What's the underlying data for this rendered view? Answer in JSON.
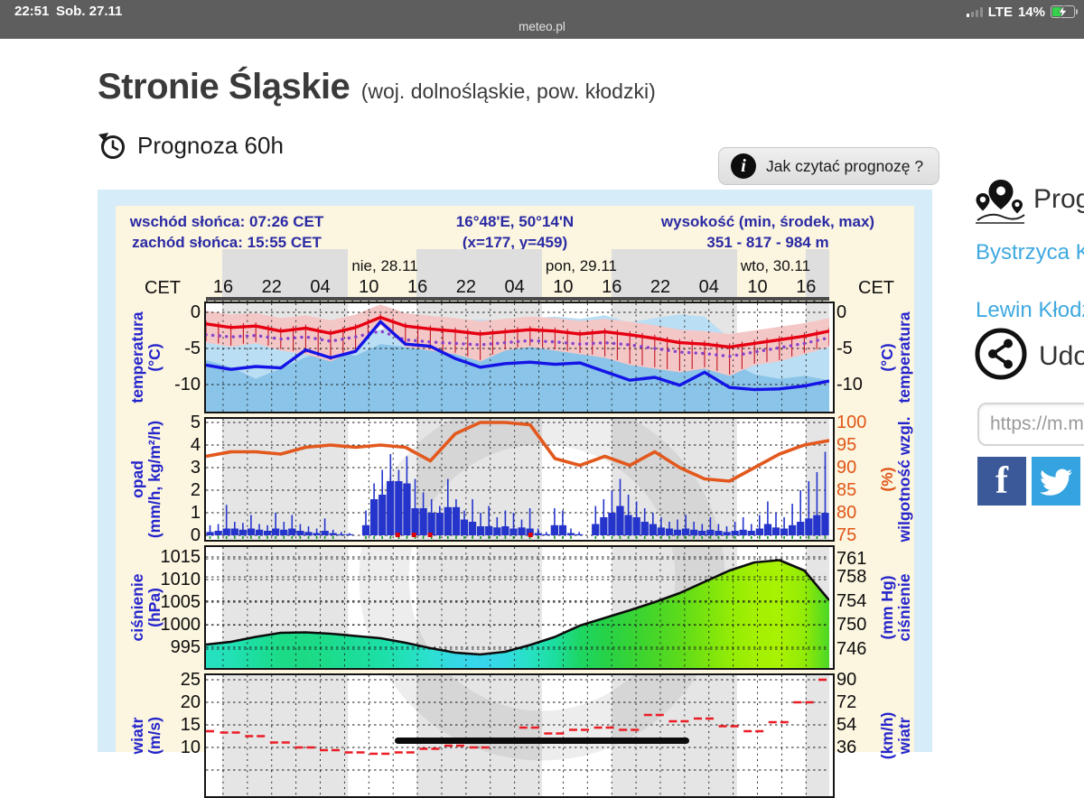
{
  "statusbar": {
    "time": "22:51",
    "date": "Sob. 27.11",
    "site": "meteo.pl",
    "network": "LTE",
    "battery": "14%"
  },
  "page": {
    "title": "Stronie Śląskie",
    "title_suffix": "(woj. dolnośląskie, pow. kłodzki)",
    "forecast_heading": "Prognoza 60h",
    "help_button": "Jak czytać prognozę ?"
  },
  "meteogram_header": {
    "sunrise": "wschód słońca: 07:26 CET",
    "sunset": "zachód słońca: 15:55 CET",
    "coords": "16°48'E, 50°14'N",
    "grid_point": "(x=177, y=459)",
    "altitude_label": "wysokość (min, środek, max)",
    "altitude_values": "351 - 817 - 984 m"
  },
  "sidebar": {
    "nearby_heading": "Prognozy",
    "links": [
      {
        "label": "Bystrzyca Kłodzka"
      },
      {
        "label": "Lewin Kłodzki"
      }
    ],
    "share_heading": "Udostępnij",
    "share_url": "https://m.meteo.pl"
  },
  "colors": {
    "navy": "#2a2aa4",
    "axis_blue": "#2424cc",
    "orange": "#e2581d",
    "red_line": "#e60012",
    "blue_line": "#1414e6",
    "bar_blue": "#2535cb",
    "purple": "#8a42cc",
    "link_blue": "#3fa9e0",
    "facebook": "#3b5998",
    "twitter": "#34a3df",
    "cream": "#fcf5df",
    "widget_blue": "#d6ecf8",
    "night_band": "#e5e5e5"
  },
  "chart_data": {
    "type": "meteogram",
    "time_axis": {
      "tz_label": "CET",
      "hour_ticks": [
        "16",
        "22",
        "04",
        "10",
        "16",
        "22",
        "04",
        "10",
        "16",
        "22",
        "04",
        "10",
        "16"
      ],
      "dates": [
        {
          "label": "nie, 28.11",
          "pos": 0.228
        },
        {
          "label": "pon, 29.11",
          "pos": 0.539
        },
        {
          "label": "wto, 30.11",
          "pos": 0.852
        }
      ],
      "night_bands": [
        [
          0.026,
          0.228
        ],
        [
          0.338,
          0.539
        ],
        [
          0.651,
          0.852
        ],
        [
          0.962,
          1.0
        ]
      ]
    },
    "temperature": {
      "ylabel_left": [
        "temperatura",
        "(°C)"
      ],
      "ylabel_right": [
        "(°C)",
        "temperatura"
      ],
      "yticks": [
        0,
        -5,
        -10
      ],
      "ymax": 1.25,
      "series": {
        "temperature_red": [
          -1.6,
          -2.1,
          -1.9,
          -2.6,
          -2.2,
          -2.9,
          -2.1,
          -0.7,
          -1.9,
          -2.3,
          -2.6,
          -3.0,
          -2.7,
          -2.4,
          -2.6,
          -3.0,
          -2.7,
          -3.1,
          -3.6,
          -4.2,
          -4.4,
          -4.8,
          -4.3,
          -3.8,
          -3.3,
          -2.6
        ],
        "dewpoint_blue": [
          -7.3,
          -7.9,
          -7.5,
          -7.7,
          -5.2,
          -6.3,
          -5.4,
          -1.3,
          -4.4,
          -4.7,
          -6.4,
          -7.6,
          -7.1,
          -6.9,
          -7.2,
          -7.0,
          -8.2,
          -9.4,
          -9.0,
          -10.1,
          -8.3,
          -10.4,
          -10.7,
          -10.6,
          -10.2,
          -9.5
        ],
        "perceived_purple": [
          -3.1,
          -3.4,
          -3.2,
          -3.7,
          -3.4,
          -4.0,
          -3.4,
          -2.6,
          -3.8,
          -4.1,
          -4.3,
          -4.5,
          -4.2,
          -3.9,
          -4.1,
          -4.4,
          -4.2,
          -4.5,
          -5.0,
          -5.5,
          -5.7,
          -6.1,
          -5.5,
          -4.9,
          -4.3,
          -3.5
        ],
        "whisker_low": [
          -4.0,
          -4.6,
          -4.1,
          -5.1,
          -5.6,
          -6.6,
          -5.1,
          -1.6,
          -4.6,
          -5.1,
          -5.6,
          -6.6,
          -5.1,
          -4.6,
          -5.1,
          -5.6,
          -6.1,
          -7.1,
          -7.6,
          -8.1,
          -7.6,
          -8.6,
          -7.1,
          -6.6,
          -5.6,
          -4.6
        ]
      },
      "cloud_light_top": [
        -2.6,
        -2.8,
        -2.4,
        -2.7,
        -3.0,
        -2.6,
        -3.2,
        -2.4,
        -1.6,
        -1.4,
        -1.2,
        -1.0,
        -1.2,
        -0.8,
        -0.6,
        -0.9,
        -0.4,
        -1.4,
        -0.8,
        -0.3,
        -0.6,
        -3.6,
        -4.2,
        -3.8,
        -4.4,
        -4.0
      ],
      "cloud_dark_top": [
        -6.6,
        -7.6,
        -9.2,
        -7.8,
        -6.2,
        -5.2,
        -6.0,
        -4.4,
        -4.8,
        -5.2,
        -5.6,
        -4.6,
        -3.6,
        -3.2,
        -2.8,
        -3.4,
        -2.6,
        -3.8,
        -3.0,
        -2.4,
        -3.2,
        -6.8,
        -8.6,
        -9.2,
        -8.8,
        -9.4
      ]
    },
    "precipitation": {
      "ylabel_left": [
        "opad",
        "(mm/h, kg/m²/h)"
      ],
      "ylabel_right": [
        "(%)",
        "wilgotność wzgl."
      ],
      "yticks": [
        5,
        4,
        3,
        2,
        1,
        0
      ],
      "humidity_ticks": [
        100,
        95,
        90,
        85,
        80,
        75
      ],
      "bars_mm_h": [
        0.15,
        0.2,
        0.3,
        0.3,
        0.25,
        0.3,
        0.25,
        0.2,
        0.3,
        0.25,
        0.3,
        0.2,
        0.15,
        0.1,
        0.2,
        0.1,
        0.05,
        0.05,
        0,
        0.45,
        1.6,
        1.8,
        2.4,
        2.4,
        2.3,
        1.2,
        1.2,
        1.0,
        1.0,
        1.25,
        1.25,
        0.7,
        0.6,
        0.4,
        0.4,
        0.35,
        0.4,
        0.3,
        0.35,
        0.3,
        0.1,
        0.05,
        0.45,
        0.45,
        0.1,
        0.05,
        0,
        0.5,
        0.8,
        1.0,
        1.3,
        0.9,
        0.8,
        0.6,
        0.5,
        0.35,
        0.3,
        0.25,
        0.3,
        0.25,
        0.2,
        0.25,
        0.2,
        0.15,
        0.2,
        0.25,
        0.2,
        0.3,
        0.5,
        0.35,
        0.3,
        0.45,
        0.6,
        0.75,
        0.9,
        1.0
      ],
      "bar_max_mm_h": [
        0.45,
        0.5,
        1.35,
        0.6,
        0.55,
        0.9,
        0.5,
        0.45,
        1.0,
        0.6,
        0.9,
        0.5,
        0.4,
        0.3,
        0.75,
        0.25,
        0.15,
        0.1,
        0,
        1.1,
        2.3,
        2.9,
        3.6,
        2.9,
        3.5,
        2.5,
        1.9,
        1.6,
        1.3,
        2.5,
        1.6,
        1.1,
        1.6,
        1.0,
        1.3,
        0.8,
        1.1,
        1.0,
        0.7,
        1.2,
        0.3,
        0.15,
        1.2,
        1.1,
        0.3,
        0.15,
        0,
        1.3,
        1.6,
        2.0,
        2.5,
        1.8,
        1.5,
        1.2,
        1.0,
        0.8,
        0.6,
        0.7,
        0.9,
        0.6,
        0.5,
        0.8,
        0.5,
        0.4,
        0.6,
        0.8,
        0.5,
        0.9,
        1.5,
        1.0,
        0.8,
        1.4,
        2.0,
        2.4,
        2.8,
        3.7
      ],
      "humidity_pct": [
        92.5,
        93.5,
        93.5,
        93,
        94.5,
        95,
        94.5,
        95,
        94.5,
        91.5,
        97.5,
        100,
        100,
        99.5,
        92,
        90.5,
        92.5,
        90.5,
        93.5,
        90,
        87.5,
        87,
        90,
        93,
        95,
        96
      ],
      "freezing_marks": [
        0.307,
        0.333,
        0.359,
        0.52
      ]
    },
    "pressure": {
      "ylabel_left": [
        "ciśnienie",
        "(hPa)"
      ],
      "ylabel_right": [
        "(mm Hg)",
        "ciśnienie"
      ],
      "yticks_hpa": [
        1015,
        1010,
        1005,
        1000,
        995
      ],
      "yticks_mmhg": [
        761,
        758,
        754,
        750,
        746
      ],
      "values_hpa": [
        995.6,
        996.2,
        997.3,
        998.2,
        998.3,
        998.0,
        997.5,
        997.0,
        996.0,
        994.8,
        993.8,
        993.4,
        994.0,
        995.5,
        997.3,
        999.8,
        1001.5,
        1003.2,
        1005.0,
        1007.0,
        1009.5,
        1012.0,
        1013.8,
        1014.3,
        1012.0,
        1005.4
      ]
    },
    "wind": {
      "ylabel_left": [
        "wiatr",
        "(m/s)"
      ],
      "ylabel_right": [
        "(km/h)",
        "wiatr"
      ],
      "yticks_ms": [
        25,
        20,
        15,
        10
      ],
      "yticks_kmh": [
        90,
        72,
        54,
        36
      ],
      "gusts_ms": [
        13.6,
        13.3,
        12.5,
        11.1,
        10.0,
        9.4,
        8.9,
        8.6,
        8.9,
        9.7,
        10.4,
        10.0,
        11.1,
        14.4,
        13.1,
        13.9,
        14.4,
        13.9,
        17.2,
        15.8,
        16.4,
        14.7,
        13.6,
        15.6,
        20.0,
        25.0
      ]
    }
  }
}
